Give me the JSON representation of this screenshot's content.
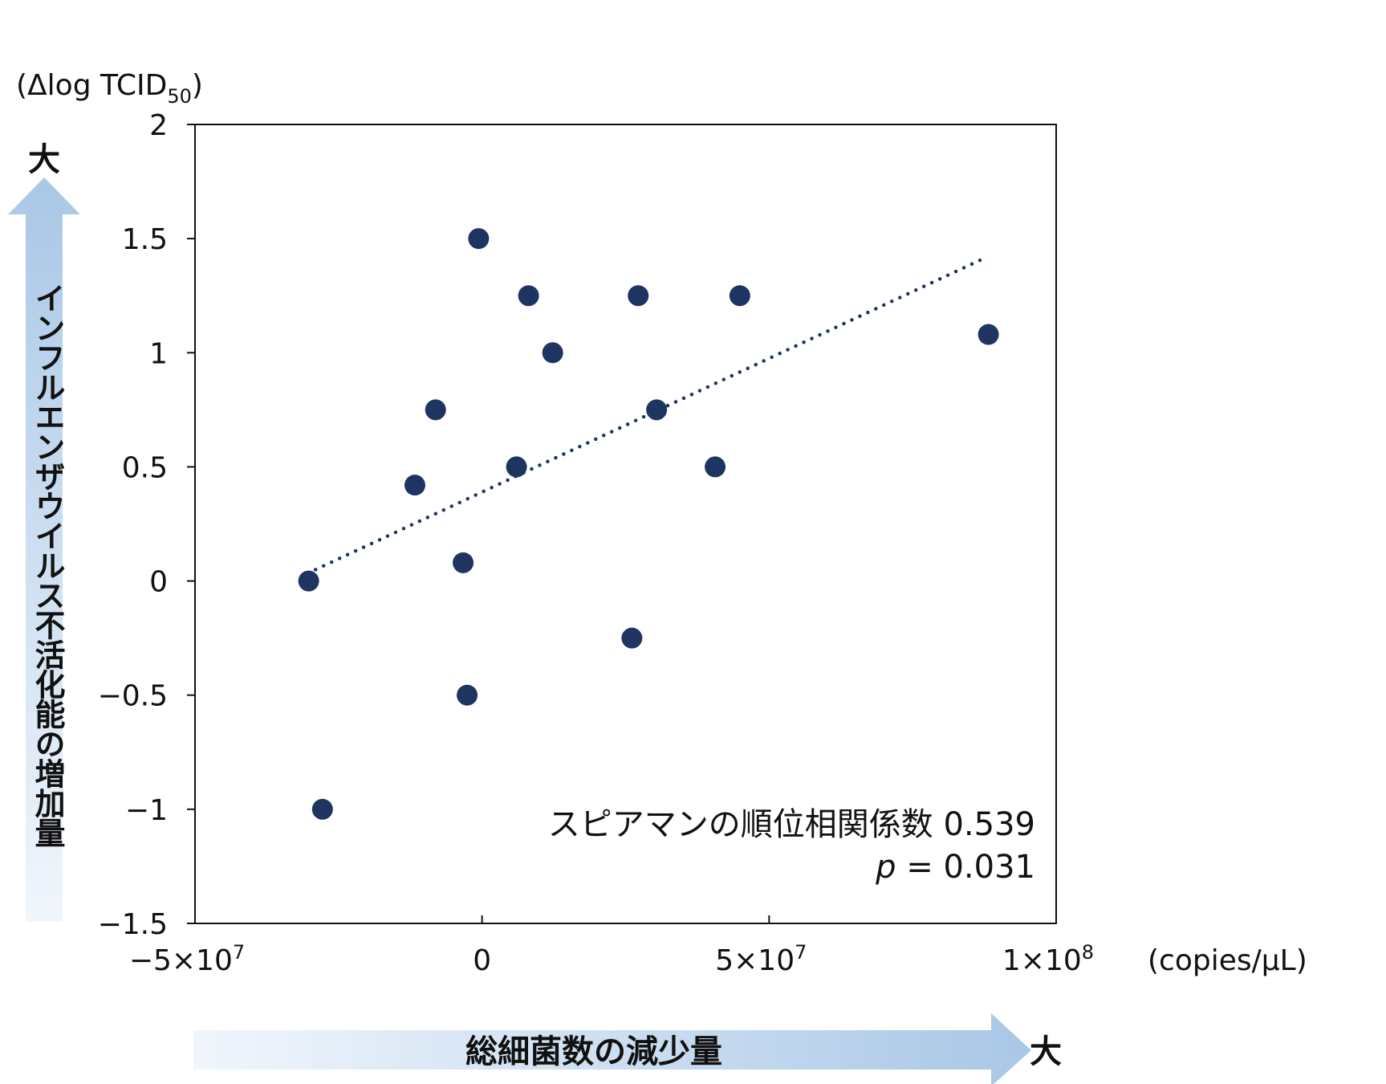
{
  "chart_data": {
    "type": "scatter",
    "x_unit": "(copies/μL)",
    "y_unit": "(Δlog TCID50)",
    "y_unit_parts": {
      "open": "(",
      "main": "Δlog TCID",
      "sub": "50",
      "close": ")"
    },
    "x_axis_label": "総細菌数の減少量",
    "y_axis_label": "インフルエンザウイルス不活化能の増加量",
    "x_direction_label": "大",
    "y_direction_label": "大",
    "xlim": [
      -50000000,
      100000000
    ],
    "ylim": [
      -1.5,
      2
    ],
    "x_ticks": [
      {
        "value": -50000000,
        "mant": "−5×10",
        "exp": "7"
      },
      {
        "value": 0,
        "mant": "0",
        "exp": ""
      },
      {
        "value": 50000000,
        "mant": "5×10",
        "exp": "7"
      },
      {
        "value": 100000000,
        "mant": "1×10",
        "exp": "8"
      }
    ],
    "y_ticks": [
      {
        "value": 2,
        "label": "2"
      },
      {
        "value": 1.5,
        "label": "1.5"
      },
      {
        "value": 1,
        "label": "1"
      },
      {
        "value": 0.5,
        "label": "0.5"
      },
      {
        "value": 0,
        "label": "0"
      },
      {
        "value": -0.5,
        "label": "−0.5"
      },
      {
        "value": -1,
        "label": "−1"
      },
      {
        "value": -1.5,
        "label": "−1.5"
      }
    ],
    "points": [
      {
        "x": -30200000,
        "y": 0.0
      },
      {
        "x": -27800000,
        "y": -1.0
      },
      {
        "x": -11700000,
        "y": 0.42
      },
      {
        "x": -8100000,
        "y": 0.75
      },
      {
        "x": -3300000,
        "y": 0.08
      },
      {
        "x": -2600000,
        "y": -0.5
      },
      {
        "x": -600000,
        "y": 1.5
      },
      {
        "x": 6000000,
        "y": 0.5
      },
      {
        "x": 8100000,
        "y": 1.25
      },
      {
        "x": 12300000,
        "y": 1.0
      },
      {
        "x": 26100000,
        "y": -0.25
      },
      {
        "x": 27200000,
        "y": 1.25
      },
      {
        "x": 30400000,
        "y": 0.75
      },
      {
        "x": 40600000,
        "y": 0.5
      },
      {
        "x": 44900000,
        "y": 1.25
      },
      {
        "x": 88200000,
        "y": 1.08
      }
    ],
    "trendline": {
      "style": "dotted",
      "x": [
        -29000000,
        88000000
      ],
      "y": [
        0.05,
        1.42
      ]
    },
    "marker_color": "#1e3461",
    "arrow_color": "#a9c7e6",
    "stats": {
      "label": "スピアマンの順位相関係数 0.539",
      "p_symbol": "p",
      "p_value": " = 0.031"
    },
    "grid": false
  }
}
